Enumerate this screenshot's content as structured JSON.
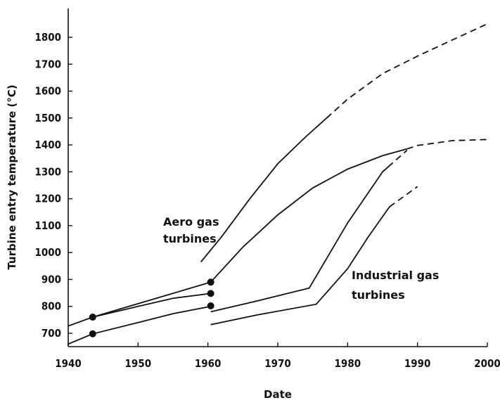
{
  "chart_data": {
    "type": "line",
    "title": "",
    "xlabel": "Date",
    "ylabel": "Turbine entry temperature (°C)",
    "xlim": [
      1940,
      2000
    ],
    "ylim": [
      645,
      1900
    ],
    "x_ticks": [
      "1940",
      "1950",
      "1960",
      "1970",
      "1980",
      "1990",
      "2000"
    ],
    "y_ticks": [
      "700",
      "800",
      "900",
      "1000",
      "1100",
      "1200",
      "1300",
      "1400",
      "1500",
      "1600",
      "1700",
      "1800"
    ],
    "grid": false,
    "annotations": [
      {
        "text": [
          "Aero gas",
          "turbines"
        ],
        "x": 1942.5,
        "y": 1065
      },
      {
        "text": [
          "Industrial gas",
          "turbines"
        ],
        "x": 1978.9,
        "y": 860
      }
    ],
    "series": [
      {
        "points": [
          [
            1940,
            727
          ],
          [
            1943.5,
            760
          ],
          [
            1950,
            810
          ],
          [
            1960.4,
            890
          ]
        ],
        "dashed_from": null
      },
      {
        "points": [
          [
            1943.5,
            760
          ],
          [
            1950,
            800
          ],
          [
            1955,
            830
          ],
          [
            1960.4,
            848
          ]
        ],
        "dashed_from": null
      },
      {
        "points": [
          [
            1940,
            660
          ],
          [
            1943.5,
            698
          ],
          [
            1950,
            740
          ],
          [
            1955,
            773
          ],
          [
            1960.4,
            800
          ]
        ],
        "dashed_from": null
      },
      {
        "points": [
          [
            1959,
            965
          ],
          [
            1962,
            1060
          ],
          [
            1966,
            1200
          ],
          [
            1970,
            1330
          ],
          [
            1974,
            1430
          ],
          [
            1977,
            1500
          ],
          [
            1980,
            1570
          ],
          [
            1985,
            1665
          ],
          [
            1990,
            1730
          ],
          [
            1995,
            1790
          ],
          [
            2000,
            1850
          ]
        ],
        "dashed_from": 1977
      },
      {
        "points": [
          [
            1960.4,
            890
          ],
          [
            1965,
            1020
          ],
          [
            1970,
            1140
          ],
          [
            1975,
            1240
          ],
          [
            1980,
            1310
          ],
          [
            1985,
            1360
          ],
          [
            1988.5,
            1385
          ],
          [
            1990,
            1398
          ],
          [
            1995,
            1416
          ],
          [
            2000,
            1420
          ]
        ],
        "dashed_from": 1988.5
      },
      {
        "points": [
          [
            1960.4,
            780
          ],
          [
            1967,
            820
          ],
          [
            1974.5,
            868
          ],
          [
            1980,
            1110
          ],
          [
            1985,
            1300
          ],
          [
            1988.5,
            1380
          ]
        ],
        "dashed_from": 1985.8
      },
      {
        "points": [
          [
            1960.4,
            732
          ],
          [
            1967,
            768
          ],
          [
            1975.5,
            808
          ],
          [
            1980,
            940
          ],
          [
            1983,
            1060
          ],
          [
            1986,
            1170
          ],
          [
            1990,
            1245
          ]
        ],
        "dashed_from": 1986
      }
    ],
    "markers": [
      {
        "x": 1943.5,
        "y": 760
      },
      {
        "x": 1943.5,
        "y": 698
      },
      {
        "x": 1960.4,
        "y": 890
      },
      {
        "x": 1960.4,
        "y": 848
      },
      {
        "x": 1960.4,
        "y": 802
      }
    ]
  }
}
